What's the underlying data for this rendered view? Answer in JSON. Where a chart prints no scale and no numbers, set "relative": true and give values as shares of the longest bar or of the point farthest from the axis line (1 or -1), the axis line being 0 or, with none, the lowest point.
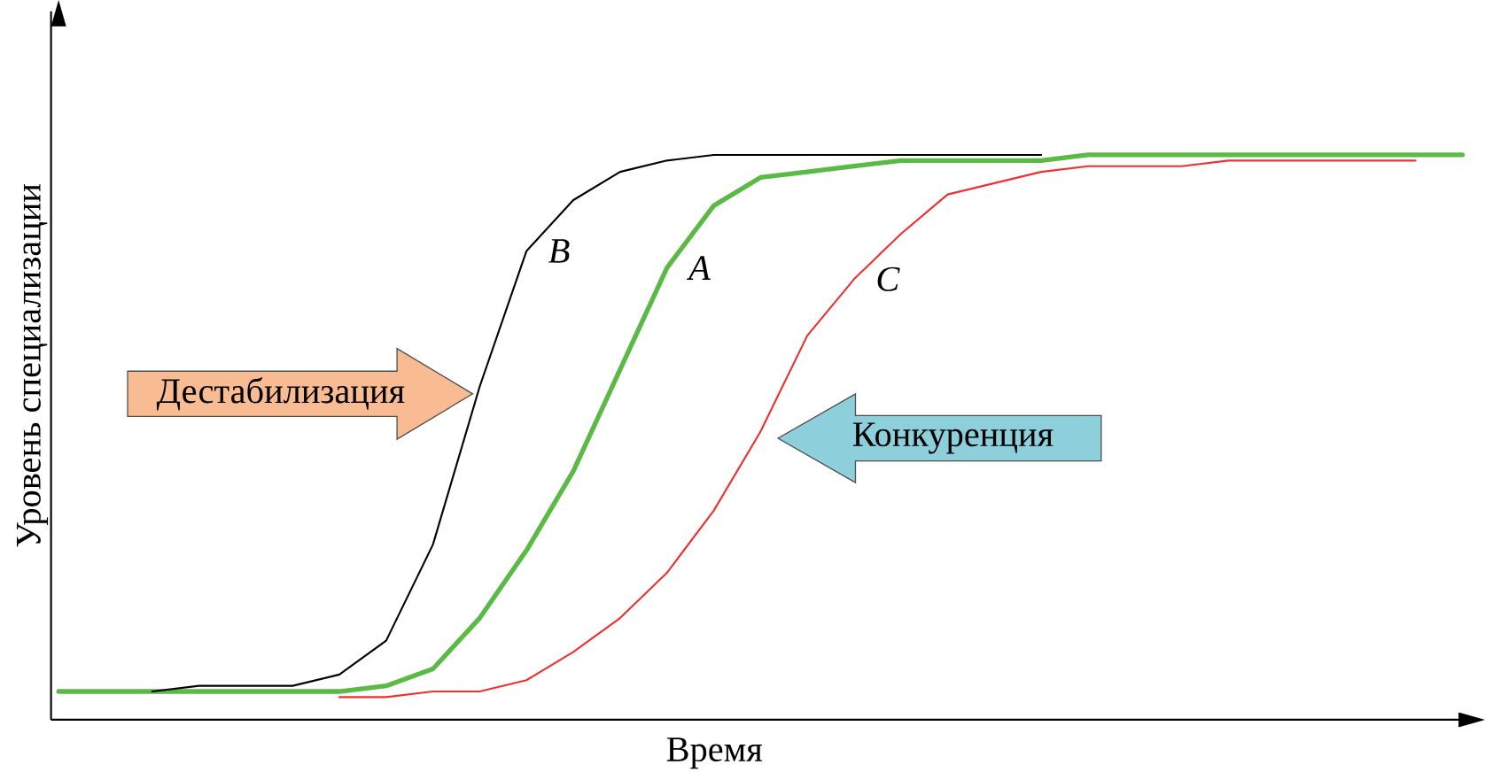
{
  "chart_data": {
    "type": "line",
    "relative": true,
    "xlabel": "Время",
    "ylabel": "Уровень специализации",
    "categories": [
      null,
      null,
      null,
      null,
      null,
      null,
      null,
      null,
      null,
      null,
      null,
      null,
      null,
      null,
      null,
      null,
      null,
      null,
      null,
      null,
      null,
      null,
      null,
      null,
      null,
      null,
      null,
      null,
      null,
      null,
      null
    ],
    "series": [
      {
        "name": "A",
        "color": "#5bb946",
        "values": [
          0.05,
          0.05,
          0.05,
          0.05,
          0.05,
          0.05,
          0.05,
          0.06,
          0.09,
          0.18,
          0.3,
          0.44,
          0.62,
          0.8,
          0.91,
          0.96,
          0.97,
          0.98,
          0.99,
          0.99,
          0.99,
          0.99,
          1.0,
          1.0,
          1.0,
          1.0,
          1.0,
          1.0,
          1.0,
          1.0,
          1.0
        ]
      },
      {
        "name": "B",
        "color": "#000000",
        "values": [
          null,
          null,
          0.05,
          0.06,
          0.06,
          0.06,
          0.08,
          0.14,
          0.31,
          0.59,
          0.83,
          0.92,
          0.97,
          0.99,
          1.0,
          1.0,
          1.0,
          1.0,
          1.0,
          1.0,
          1.0,
          1.0,
          null,
          null,
          null,
          null,
          null,
          null,
          null,
          null,
          null
        ]
      },
      {
        "name": "C",
        "color": "#ee3030",
        "values": [
          null,
          null,
          null,
          null,
          null,
          null,
          0.04,
          0.04,
          0.05,
          0.05,
          0.07,
          0.12,
          0.18,
          0.26,
          0.37,
          0.51,
          0.68,
          0.78,
          0.86,
          0.93,
          0.95,
          0.97,
          0.98,
          0.98,
          0.98,
          0.99,
          0.99,
          0.99,
          0.99,
          0.99,
          null
        ]
      }
    ],
    "annotations": [
      "Дестабилизация",
      "Конкуренция"
    ],
    "marker": "none",
    "line_style": "solid"
  }
}
